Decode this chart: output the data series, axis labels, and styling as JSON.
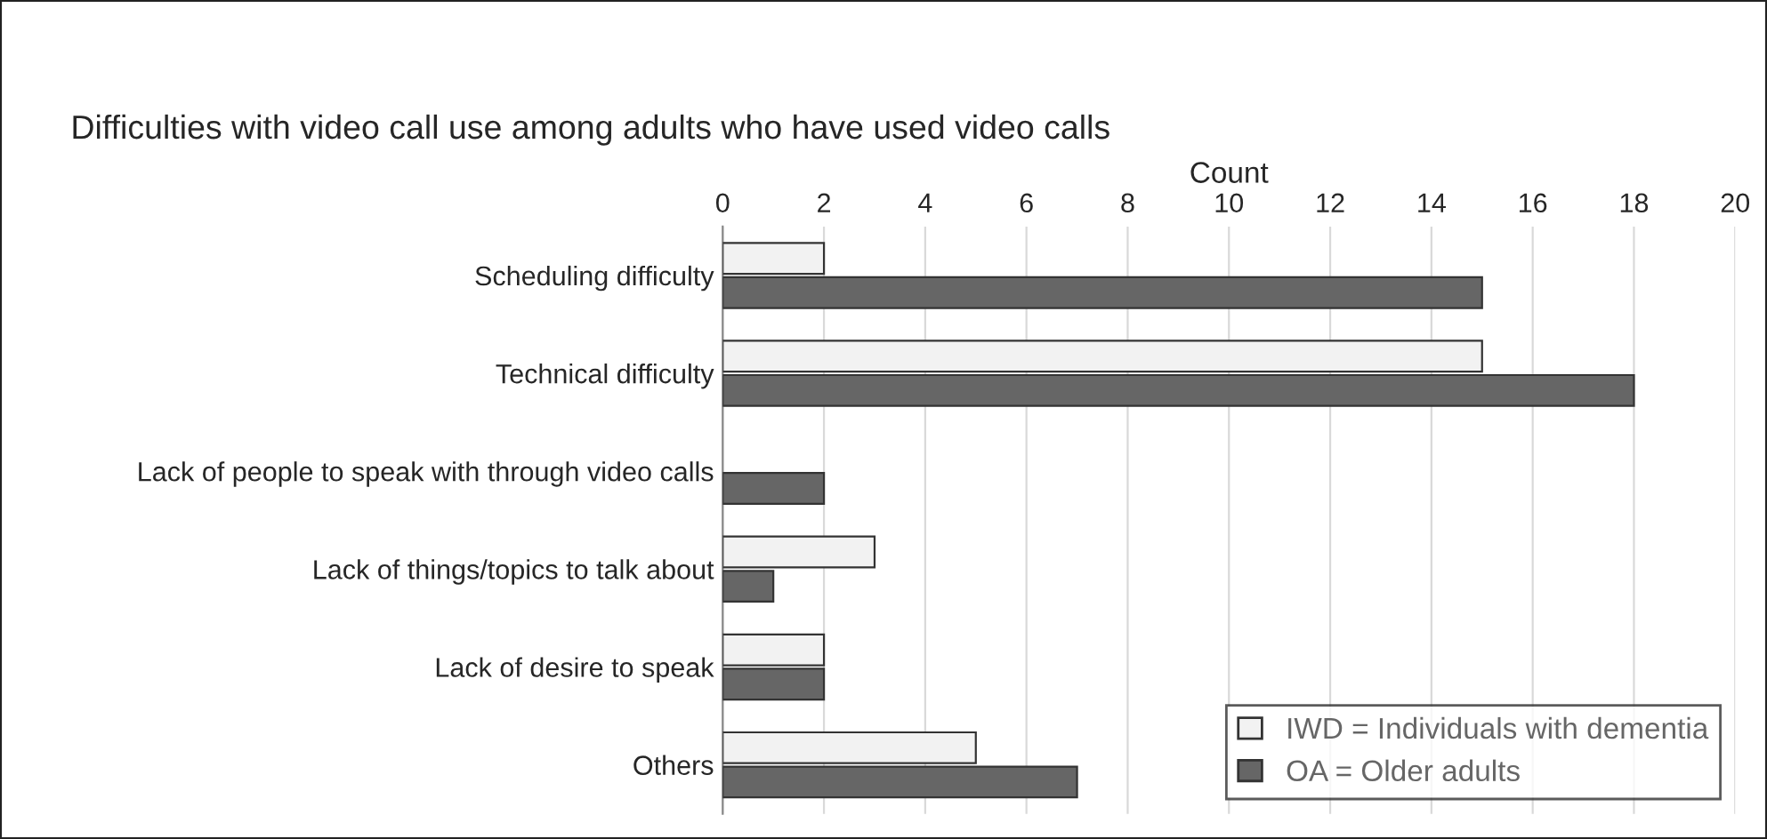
{
  "chart_data": {
    "type": "bar",
    "orientation": "horizontal",
    "title": "Difficulties with video call use among adults who have used video calls",
    "xlabel": "Count",
    "categories": [
      "Scheduling difficulty",
      "Technical difficulty",
      "Lack of people to speak with through video calls",
      "Lack of things/topics to talk about",
      "Lack of desire to speak",
      "Others"
    ],
    "series": [
      {
        "name": "IWD = Individuals with dementia",
        "color": "#f2f2f2",
        "values": [
          2,
          15,
          null,
          3,
          2,
          5
        ]
      },
      {
        "name": "OA = Older adults",
        "color": "#666666",
        "values": [
          15,
          18,
          2,
          1,
          2,
          7
        ]
      }
    ],
    "xlim": [
      0,
      20
    ],
    "xticks": [
      0,
      2,
      4,
      6,
      8,
      10,
      12,
      14,
      16,
      18,
      20
    ],
    "grid": "x",
    "legend": "bottom right"
  }
}
